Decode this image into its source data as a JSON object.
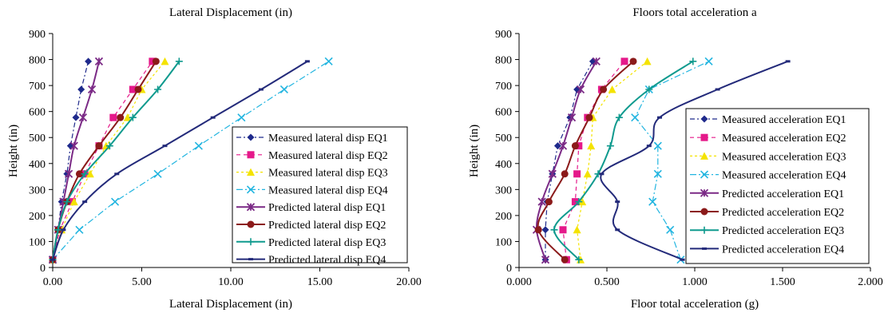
{
  "charts": [
    {
      "title": "Lateral Displacement (in)",
      "xlabel": "Lateral Displacement (in)",
      "ylabel": "Height (in)",
      "x_ticks": [
        "0.00",
        "5.00",
        "10.00",
        "15.00",
        "20.00"
      ],
      "y_ticks": [
        "0",
        "100",
        "200",
        "300",
        "400",
        "500",
        "600",
        "700",
        "800",
        "900"
      ],
      "legend": [
        "Measured lateral disp EQ1",
        "Measured lateral disp EQ2",
        "Measured lateral disp EQ3",
        "Measured lateral disp EQ4",
        "Predicted lateral disp EQ1",
        "Predicted lateral disp EQ2",
        "Predicted lateral disp EQ3",
        "Predicted lateral disp EQ4"
      ]
    },
    {
      "title": "Floors total acceleration a",
      "xlabel": "Floor total acceleration (g)",
      "ylabel": "Height (in)",
      "x_ticks": [
        "0.000",
        "0.500",
        "1.000",
        "1.500",
        "2.000"
      ],
      "y_ticks": [
        "0",
        "100",
        "200",
        "300",
        "400",
        "500",
        "600",
        "700",
        "800",
        "900"
      ],
      "legend": [
        "Measured acceleration EQ1",
        "Measured acceleration EQ2",
        "Measured acceleration EQ3",
        "Measured acceleration EQ4",
        "Predicted acceleration EQ1",
        "Predicted acceleration EQ2",
        "Predicted acceleration EQ3",
        "Predicted acceleration EQ4"
      ]
    }
  ],
  "styles": [
    {
      "color": "#1f2a8c",
      "marker": "diamond",
      "dash": "6,3,2,3"
    },
    {
      "color": "#e5198a",
      "marker": "square",
      "dash": "5,4"
    },
    {
      "color": "#f4e300",
      "marker": "triangle",
      "dash": "3,3"
    },
    {
      "color": "#22b5e0",
      "marker": "x",
      "dash": "8,3,2,3"
    },
    {
      "color": "#7b2a86",
      "marker": "asterisk",
      "dash": ""
    },
    {
      "color": "#8b1a1a",
      "marker": "circle",
      "dash": ""
    },
    {
      "color": "#0f9a8e",
      "marker": "plus",
      "dash": ""
    },
    {
      "color": "#232a7a",
      "marker": "dash",
      "dash": ""
    }
  ],
  "chart_data": [
    {
      "type": "line",
      "title": "Lateral Displacement (in)",
      "xlabel": "Lateral Displacement (in)",
      "ylabel": "Height (in)",
      "xlim": [
        0,
        20
      ],
      "ylim": [
        0,
        900
      ],
      "grid": false,
      "legend_position": "right",
      "series": [
        {
          "name": "Measured lateral disp EQ1",
          "points": [
            [
              0.0,
              30
            ],
            [
              0.3,
              145
            ],
            [
              0.5,
              253
            ],
            [
              0.8,
              360
            ],
            [
              1.0,
              468
            ],
            [
              1.3,
              577
            ],
            [
              1.6,
              685
            ],
            [
              2.0,
              793
            ]
          ]
        },
        {
          "name": "Measured lateral disp EQ2",
          "points": [
            [
              0.0,
              30
            ],
            [
              0.4,
              145
            ],
            [
              1.1,
              253
            ],
            [
              1.8,
              360
            ],
            [
              2.6,
              468
            ],
            [
              3.4,
              577
            ],
            [
              4.5,
              685
            ],
            [
              5.6,
              793
            ]
          ]
        },
        {
          "name": "Measured lateral disp EQ3",
          "points": [
            [
              0.0,
              30
            ],
            [
              0.5,
              145
            ],
            [
              1.2,
              253
            ],
            [
              2.1,
              360
            ],
            [
              3.0,
              468
            ],
            [
              4.2,
              577
            ],
            [
              5.0,
              685
            ],
            [
              6.3,
              793
            ]
          ]
        },
        {
          "name": "Measured lateral disp EQ4",
          "points": [
            [
              0.0,
              30
            ],
            [
              1.5,
              145
            ],
            [
              3.5,
              253
            ],
            [
              5.9,
              360
            ],
            [
              8.2,
              468
            ],
            [
              10.6,
              577
            ],
            [
              13.0,
              685
            ],
            [
              15.5,
              793
            ]
          ]
        },
        {
          "name": "Predicted lateral disp EQ1",
          "points": [
            [
              0.0,
              30
            ],
            [
              0.3,
              145
            ],
            [
              0.6,
              253
            ],
            [
              0.9,
              360
            ],
            [
              1.2,
              468
            ],
            [
              1.7,
              577
            ],
            [
              2.2,
              685
            ],
            [
              2.6,
              793
            ]
          ]
        },
        {
          "name": "Predicted lateral disp EQ2",
          "points": [
            [
              0.0,
              30
            ],
            [
              0.3,
              145
            ],
            [
              0.8,
              253
            ],
            [
              1.5,
              360
            ],
            [
              2.6,
              468
            ],
            [
              3.8,
              577
            ],
            [
              4.8,
              685
            ],
            [
              5.8,
              793
            ]
          ]
        },
        {
          "name": "Predicted lateral disp EQ3",
          "points": [
            [
              0.0,
              30
            ],
            [
              0.3,
              145
            ],
            [
              0.8,
              253
            ],
            [
              1.8,
              360
            ],
            [
              3.2,
              468
            ],
            [
              4.5,
              577
            ],
            [
              5.9,
              685
            ],
            [
              7.1,
              793
            ]
          ]
        },
        {
          "name": "Predicted lateral disp EQ4",
          "points": [
            [
              0.0,
              30
            ],
            [
              0.6,
              145
            ],
            [
              1.8,
              253
            ],
            [
              3.6,
              360
            ],
            [
              6.3,
              468
            ],
            [
              9.0,
              577
            ],
            [
              11.7,
              685
            ],
            [
              14.3,
              793
            ]
          ]
        }
      ]
    },
    {
      "type": "line",
      "title": "Floors total acceleration a",
      "xlabel": "Floor total acceleration (g)",
      "ylabel": "Height (in)",
      "xlim": [
        0,
        2
      ],
      "ylim": [
        0,
        900
      ],
      "grid": false,
      "legend_position": "right",
      "series": [
        {
          "name": "Measured acceleration EQ1",
          "points": [
            [
              0.15,
              30
            ],
            [
              0.15,
              145
            ],
            [
              0.16,
              253
            ],
            [
              0.19,
              360
            ],
            [
              0.22,
              468
            ],
            [
              0.29,
              577
            ],
            [
              0.33,
              685
            ],
            [
              0.42,
              793
            ]
          ]
        },
        {
          "name": "Measured acceleration EQ2",
          "points": [
            [
              0.27,
              30
            ],
            [
              0.25,
              145
            ],
            [
              0.32,
              253
            ],
            [
              0.33,
              360
            ],
            [
              0.34,
              468
            ],
            [
              0.39,
              577
            ],
            [
              0.47,
              685
            ],
            [
              0.6,
              793
            ]
          ]
        },
        {
          "name": "Measured acceleration EQ3",
          "points": [
            [
              0.35,
              30
            ],
            [
              0.33,
              145
            ],
            [
              0.36,
              253
            ],
            [
              0.39,
              360
            ],
            [
              0.41,
              468
            ],
            [
              0.42,
              577
            ],
            [
              0.53,
              685
            ],
            [
              0.73,
              793
            ]
          ]
        },
        {
          "name": "Measured acceleration EQ4",
          "points": [
            [
              0.92,
              30
            ],
            [
              0.86,
              145
            ],
            [
              0.76,
              253
            ],
            [
              0.79,
              360
            ],
            [
              0.79,
              468
            ],
            [
              0.66,
              577
            ],
            [
              0.74,
              685
            ],
            [
              1.08,
              793
            ]
          ]
        },
        {
          "name": "Predicted acceleration EQ1",
          "points": [
            [
              0.15,
              30
            ],
            [
              0.1,
              145
            ],
            [
              0.13,
              253
            ],
            [
              0.19,
              360
            ],
            [
              0.25,
              468
            ],
            [
              0.3,
              577
            ],
            [
              0.35,
              685
            ],
            [
              0.44,
              793
            ]
          ]
        },
        {
          "name": "Predicted acceleration EQ2",
          "points": [
            [
              0.26,
              30
            ],
            [
              0.11,
              145
            ],
            [
              0.17,
              253
            ],
            [
              0.26,
              360
            ],
            [
              0.32,
              468
            ],
            [
              0.4,
              577
            ],
            [
              0.48,
              685
            ],
            [
              0.65,
              793
            ]
          ]
        },
        {
          "name": "Predicted acceleration EQ3",
          "points": [
            [
              0.34,
              30
            ],
            [
              0.2,
              145
            ],
            [
              0.34,
              253
            ],
            [
              0.45,
              360
            ],
            [
              0.52,
              468
            ],
            [
              0.57,
              577
            ],
            [
              0.74,
              685
            ],
            [
              0.99,
              793
            ]
          ]
        },
        {
          "name": "Predicted acceleration EQ4",
          "points": [
            [
              0.93,
              30
            ],
            [
              0.56,
              145
            ],
            [
              0.56,
              253
            ],
            [
              0.47,
              360
            ],
            [
              0.74,
              468
            ],
            [
              0.8,
              577
            ],
            [
              1.13,
              685
            ],
            [
              1.53,
              793
            ]
          ]
        }
      ]
    }
  ]
}
